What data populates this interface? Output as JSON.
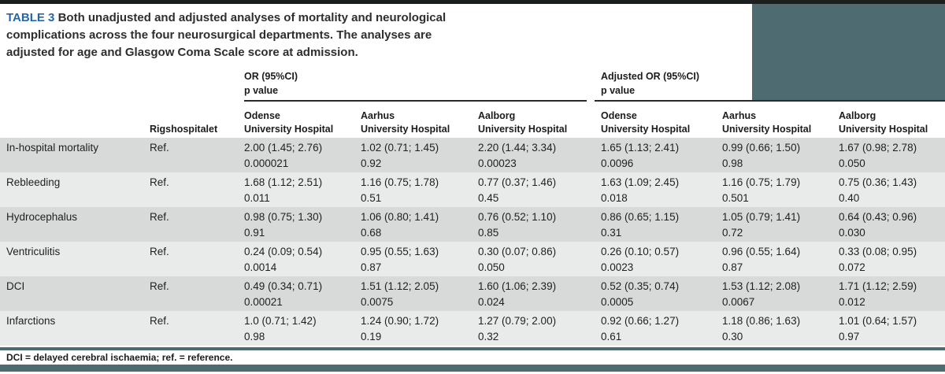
{
  "caption": {
    "label": "TABLE 3",
    "line1": "Both unadjusted and adjusted analyses of mortality and neurological",
    "line2": "complications across the four neurosurgical departments. The analyses are",
    "line3": "adjusted for age and Glasgow Coma Scale score at admission."
  },
  "table": {
    "group_headers": [
      {
        "title": "OR (95%CI)",
        "subtitle": "p value"
      },
      {
        "title": "Adjusted OR (95%CI)",
        "subtitle": "p value"
      }
    ],
    "ref_column_header": "Rigshospitalet",
    "column_headers": [
      {
        "line1": "Odense",
        "line2": "University Hospital"
      },
      {
        "line1": "Aarhus",
        "line2": "University Hospital"
      },
      {
        "line1": "Aalborg",
        "line2": "University Hospital"
      },
      {
        "line1": "Odense",
        "line2": "University Hospital"
      },
      {
        "line1": "Aarhus",
        "line2": "University Hospital"
      },
      {
        "line1": "Aalborg",
        "line2": "University Hospital"
      }
    ],
    "rows": [
      {
        "label": "In-hospital mortality",
        "ref": "Ref.",
        "cells": [
          {
            "or": "2.00 (1.45; 2.76)",
            "p": "0.000021"
          },
          {
            "or": "1.02 (0.71; 1.45)",
            "p": "0.92"
          },
          {
            "or": "2.20 (1.44; 3.34)",
            "p": "0.00023"
          },
          {
            "or": "1.65 (1.13; 2.41)",
            "p": "0.0096"
          },
          {
            "or": "0.99 (0.66; 1.50)",
            "p": "0.98"
          },
          {
            "or": "1.67 (0.98; 2.78)",
            "p": "0.050"
          }
        ]
      },
      {
        "label": "Rebleeding",
        "ref": "Ref.",
        "cells": [
          {
            "or": "1.68 (1.12; 2.51)",
            "p": "0.011"
          },
          {
            "or": "1.16 (0.75; 1.78)",
            "p": "0.51"
          },
          {
            "or": "0.77 (0.37; 1.46)",
            "p": "0.45"
          },
          {
            "or": "1.63 (1.09; 2.45)",
            "p": "0.018"
          },
          {
            "or": "1.16 (0.75; 1.79)",
            "p": "0.501"
          },
          {
            "or": "0.75 (0.36; 1.43)",
            "p": "0.40"
          }
        ]
      },
      {
        "label": "Hydrocephalus",
        "ref": "Ref.",
        "cells": [
          {
            "or": "0.98 (0.75; 1.30)",
            "p": "0.91"
          },
          {
            "or": "1.06 (0.80; 1.41)",
            "p": "0.68"
          },
          {
            "or": "0.76 (0.52; 1.10)",
            "p": "0.85"
          },
          {
            "or": "0.86 (0.65; 1.15)",
            "p": "0.31"
          },
          {
            "or": "1.05 (0.79; 1.41)",
            "p": "0.72"
          },
          {
            "or": "0.64 (0.43; 0.96)",
            "p": "0.030"
          }
        ]
      },
      {
        "label": "Ventriculitis",
        "ref": "Ref.",
        "cells": [
          {
            "or": "0.24 (0.09; 0.54)",
            "p": "0.0014"
          },
          {
            "or": "0.95 (0.55; 1.63)",
            "p": "0.87"
          },
          {
            "or": "0.30 (0.07; 0.86)",
            "p": "0.050"
          },
          {
            "or": "0.26 (0.10; 0.57)",
            "p": "0.0023"
          },
          {
            "or": "0.96 (0.55; 1.64)",
            "p": "0.87"
          },
          {
            "or": "0.33 (0.08; 0.95)",
            "p": "0.072"
          }
        ]
      },
      {
        "label": "DCI",
        "ref": "Ref.",
        "cells": [
          {
            "or": "0.49 (0.34; 0.71)",
            "p": "0.00021"
          },
          {
            "or": "1.51 (1.12; 2.05)",
            "p": "0.0075"
          },
          {
            "or": "1.60 (1.06; 2.39)",
            "p": "0.024"
          },
          {
            "or": "0.52 (0.35; 0.74)",
            "p": "0.0005"
          },
          {
            "or": "1.53 (1.12; 2.08)",
            "p": "0.0067"
          },
          {
            "or": "1.71 (1.12; 2.59)",
            "p": "0.012"
          }
        ]
      },
      {
        "label": "Infarctions",
        "ref": "Ref.",
        "cells": [
          {
            "or": "1.0 (0.71; 1.42)",
            "p": "0.98"
          },
          {
            "or": "1.24 (0.90; 1.72)",
            "p": "0.19"
          },
          {
            "or": "1.27 (0.79; 2.00)",
            "p": "0.32"
          },
          {
            "or": "0.92 (0.66; 1.27)",
            "p": "0.61"
          },
          {
            "or": "1.18 (0.86; 1.63)",
            "p": "0.30"
          },
          {
            "or": "1.01 (0.64; 1.57)",
            "p": "0.97"
          }
        ]
      }
    ]
  },
  "footnote": "DCI = delayed cerebral ischaemia; ref. = reference.",
  "colors": {
    "accent_teal": "#4d6b70",
    "table_label_blue": "#2565a8",
    "row_stripe_dark": "#d8dad9",
    "row_stripe_light": "#e9ebea",
    "top_rule": "#1b1f20"
  }
}
